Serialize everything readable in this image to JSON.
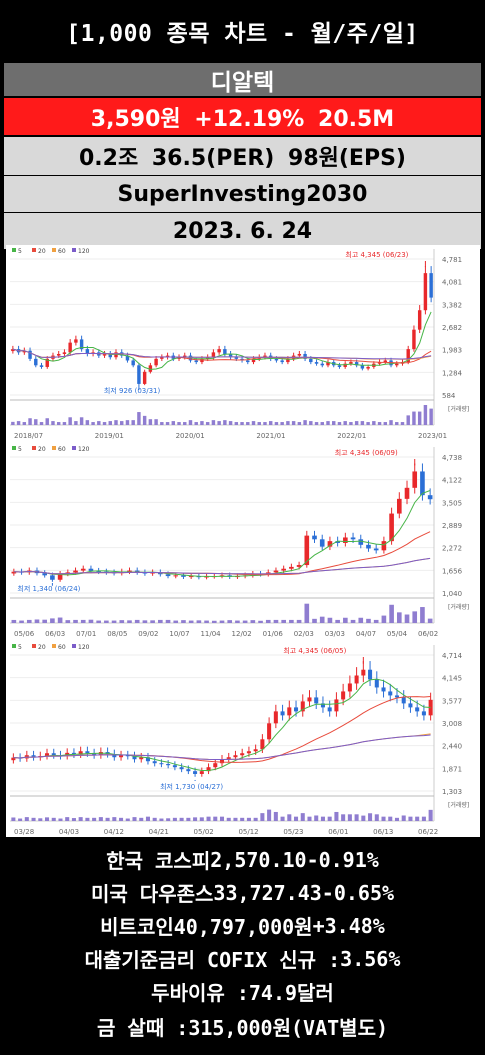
{
  "header": {
    "title": "[1,000 종목 차트 - 월/주/일]"
  },
  "stock": {
    "name": "디알텍",
    "price_line": "3,590원  +12.19%  20.5M",
    "valuation_line": "0.2조  36.5(PER)  98원(EPS)",
    "channel": "SuperInvesting2030",
    "date": "2023. 6. 24"
  },
  "colors": {
    "up": "#e8282b",
    "down": "#2b6fd6",
    "ma5": "#47b547",
    "ma20": "#e84b3c",
    "ma60": "#f0a040",
    "ma120": "#7b5cc9",
    "volume": "#8f7dd0"
  },
  "legend": [
    "5",
    "20",
    "60",
    "120"
  ],
  "volume_label": "[거래량]",
  "chart_data": [
    {
      "type": "candlestick",
      "period": "monthly",
      "y_ticks": [
        "4,781",
        "4,081",
        "3,382",
        "2,682",
        "1,983",
        "1,284",
        "584"
      ],
      "ylim": [
        584,
        4781
      ],
      "x_ticks": [
        "2018/07",
        "2019/01",
        "2020/01",
        "2021/01",
        "2022/01",
        "2023/01"
      ],
      "annotations": {
        "high": "최고 4,345 (06/23)",
        "low": "최저 926 (03/31)"
      },
      "close": [
        2000,
        1900,
        1950,
        1700,
        1500,
        1450,
        1700,
        1800,
        1850,
        1900,
        2200,
        2300,
        2000,
        1850,
        1900,
        1800,
        1850,
        1750,
        1900,
        1800,
        1650,
        1500,
        926,
        1300,
        1500,
        1700,
        1750,
        1800,
        1700,
        1750,
        1800,
        1650,
        1600,
        1700,
        1750,
        1900,
        2000,
        1850,
        1750,
        1700,
        1650,
        1600,
        1700,
        1750,
        1800,
        1700,
        1650,
        1600,
        1700,
        1800,
        1850,
        1700,
        1600,
        1550,
        1500,
        1600,
        1500,
        1450,
        1550,
        1600,
        1500,
        1400,
        1450,
        1550,
        1600,
        1650,
        1500,
        1550,
        1600,
        2000,
        2600,
        3200,
        4345,
        3590
      ]
    },
    {
      "type": "candlestick",
      "period": "weekly",
      "y_ticks": [
        "4,738",
        "4,122",
        "3,505",
        "2,889",
        "2,272",
        "1,656",
        "1,040"
      ],
      "ylim": [
        1040,
        4738
      ],
      "x_ticks": [
        "05/06",
        "06/03",
        "07/01",
        "08/05",
        "09/02",
        "10/07",
        "11/04",
        "12/02",
        "01/06",
        "02/03",
        "03/03",
        "04/07",
        "05/04",
        "06/02"
      ],
      "annotations": {
        "high": "최고 4,345 (06/09)",
        "low": "최저 1,340 (06/24)"
      },
      "close": [
        1620,
        1600,
        1650,
        1580,
        1520,
        1400,
        1560,
        1600,
        1650,
        1700,
        1640,
        1620,
        1600,
        1580,
        1620,
        1650,
        1600,
        1570,
        1600,
        1550,
        1500,
        1520,
        1480,
        1500,
        1470,
        1490,
        1500,
        1520,
        1480,
        1500,
        1520,
        1560,
        1550,
        1600,
        1650,
        1700,
        1750,
        1800,
        2600,
        2500,
        2300,
        2450,
        2400,
        2550,
        2500,
        2350,
        2250,
        2200,
        2450,
        3200,
        3600,
        3900,
        4345,
        3700,
        3590
      ]
    },
    {
      "type": "candlestick",
      "period": "daily",
      "y_ticks": [
        "4,714",
        "4,145",
        "3,577",
        "3,008",
        "2,440",
        "1,871",
        "1,303"
      ],
      "ylim": [
        1303,
        4714
      ],
      "x_ticks": [
        "03/28",
        "04/03",
        "04/12",
        "04/21",
        "05/02",
        "05/12",
        "05/23",
        "06/01",
        "06/13",
        "06/22"
      ],
      "annotations": {
        "high": "최고 4,345 (06/05)",
        "low": "최저 1,730 (04/27)"
      },
      "close": [
        2140,
        2120,
        2200,
        2150,
        2180,
        2250,
        2200,
        2180,
        2260,
        2220,
        2300,
        2250,
        2200,
        2280,
        2230,
        2150,
        2200,
        2180,
        2100,
        2150,
        2050,
        2000,
        1980,
        1950,
        1900,
        1850,
        1800,
        1730,
        1800,
        1900,
        2000,
        2100,
        2150,
        2200,
        2250,
        2300,
        2350,
        2600,
        3000,
        3300,
        3200,
        3400,
        3300,
        3550,
        3650,
        3500,
        3400,
        3300,
        3600,
        3800,
        4000,
        4200,
        4345,
        4100,
        3900,
        3800,
        3700,
        3650,
        3500,
        3400,
        3300,
        3200,
        3590
      ]
    }
  ],
  "footer": [
    {
      "label": "한국 코스피",
      "value": "2,570.10",
      "change": "-0.91%"
    },
    {
      "label": "미국 다우존스",
      "value": "33,727.43",
      "change": "-0.65%"
    },
    {
      "label": "비트코인",
      "value": "40,797,000원",
      "change": "+3.48%"
    },
    {
      "label": "대출기준금리 COFIX 신규 :",
      "value": "3.56%",
      "change": ""
    },
    {
      "label": "두바이유 :",
      "value": "74.9달러",
      "change": ""
    },
    {
      "label": "금 살때 :",
      "value": "315,000원(VAT별도)",
      "change": ""
    }
  ]
}
